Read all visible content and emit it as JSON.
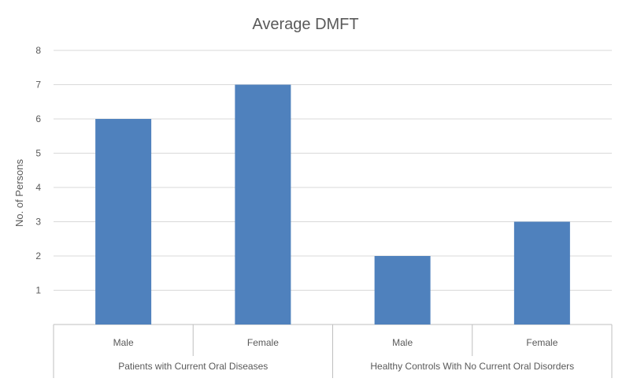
{
  "chart_data": {
    "type": "bar",
    "title": "Average DMFT",
    "xlabel": "",
    "ylabel": "No. of Persons",
    "ylim": [
      0,
      8
    ],
    "yticks": [
      1,
      2,
      3,
      4,
      5,
      6,
      7,
      8
    ],
    "grid": true,
    "legend": "none",
    "categories": [
      "Male",
      "Female",
      "Male",
      "Female"
    ],
    "groups": [
      {
        "label": "Patients with Current Oral Diseases",
        "categories": [
          "Male",
          "Female"
        ]
      },
      {
        "label": "Healthy Controls With No Current Oral Disorders",
        "categories": [
          "Male",
          "Female"
        ]
      }
    ],
    "values": [
      6,
      7,
      2,
      3
    ],
    "bar_color": "#4f81bd",
    "grid_color": "#d9d9d9",
    "text_color": "#595959"
  }
}
